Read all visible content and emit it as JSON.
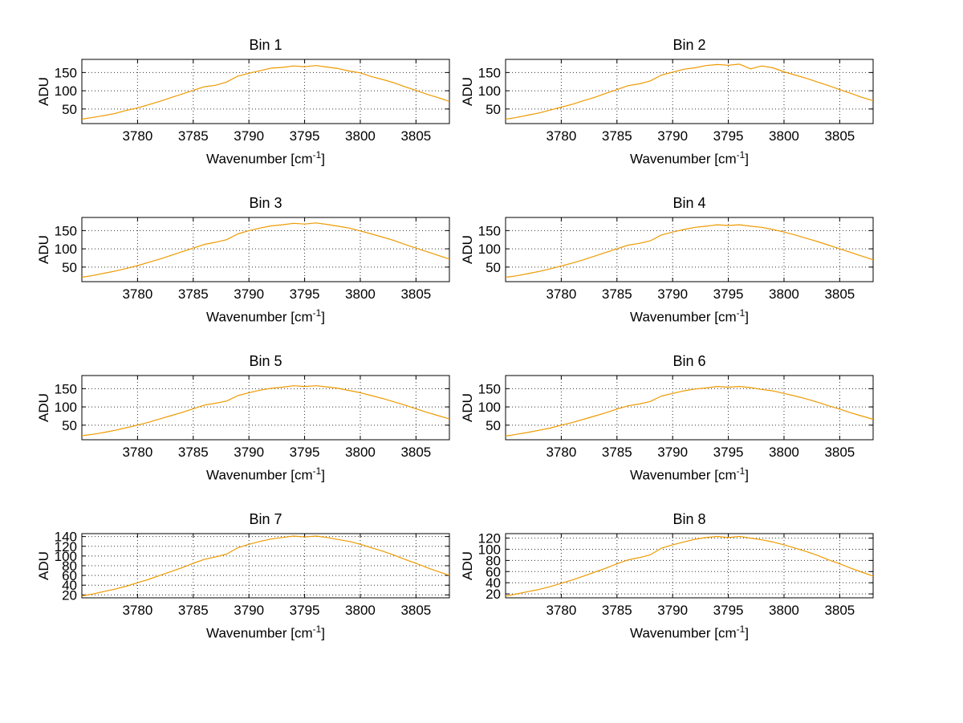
{
  "figure": {
    "background": "#ffffff",
    "axis_color": "#000000",
    "grid_color": "#333333",
    "line_color": "#EE9A00"
  },
  "labels": {
    "ylabel": "ADU",
    "xlabel_prefix": "Wavenumber [cm",
    "xlabel_sup": "-1",
    "xlabel_suffix": "]"
  },
  "chart_data": {
    "type": "line",
    "layout": "4 rows x 2 columns subplots",
    "xlabel": "Wavenumber [cm^-1]",
    "ylabel": "ADU",
    "grid": true,
    "legend": null,
    "line_color": "#EE9A00",
    "xlim": [
      3775,
      3808
    ],
    "xticks": [
      3780,
      3785,
      3790,
      3795,
      3800,
      3805
    ],
    "x": [
      3775,
      3776,
      3777,
      3778,
      3779,
      3780,
      3781,
      3782,
      3783,
      3784,
      3785,
      3786,
      3787,
      3788,
      3789,
      3790,
      3791,
      3792,
      3793,
      3794,
      3795,
      3796,
      3797,
      3798,
      3799,
      3800,
      3801,
      3802,
      3803,
      3804,
      3805,
      3806,
      3807,
      3808
    ],
    "subplots": [
      {
        "title": "Bin 1",
        "ylim": [
          10,
          186
        ],
        "yticks": [
          50,
          100,
          150
        ],
        "values": [
          22,
          27,
          32,
          38,
          46,
          53,
          62,
          71,
          81,
          91,
          101,
          111,
          115,
          124,
          140,
          148,
          155,
          162,
          164,
          168,
          166,
          169,
          165,
          161,
          154,
          149,
          139,
          131,
          122,
          111,
          101,
          90,
          81,
          71
        ]
      },
      {
        "title": "Bin 2",
        "ylim": [
          10,
          186
        ],
        "yticks": [
          50,
          100,
          150
        ],
        "values": [
          22,
          27,
          33,
          39,
          47,
          55,
          63,
          73,
          82,
          93,
          103,
          114,
          119,
          127,
          143,
          151,
          159,
          163,
          169,
          172,
          170,
          173,
          160,
          168,
          163,
          152,
          143,
          134,
          124,
          114,
          103,
          93,
          82,
          73
        ]
      },
      {
        "title": "Bin 3",
        "ylim": [
          10,
          186
        ],
        "yticks": [
          50,
          100,
          150
        ],
        "values": [
          22,
          27,
          33,
          39,
          46,
          54,
          63,
          72,
          82,
          92,
          102,
          112,
          118,
          125,
          141,
          150,
          157,
          163,
          166,
          170,
          168,
          171,
          167,
          162,
          157,
          149,
          141,
          132,
          123,
          112,
          102,
          92,
          82,
          72
        ]
      },
      {
        "title": "Bin 4",
        "ylim": [
          10,
          186
        ],
        "yticks": [
          50,
          100,
          150
        ],
        "values": [
          22,
          26,
          32,
          38,
          45,
          53,
          61,
          70,
          80,
          90,
          100,
          110,
          115,
          122,
          138,
          146,
          153,
          159,
          162,
          166,
          164,
          166,
          162,
          159,
          153,
          146,
          138,
          129,
          120,
          110,
          100,
          90,
          80,
          70
        ]
      },
      {
        "title": "Bin 5",
        "ylim": [
          10,
          186
        ],
        "yticks": [
          50,
          100,
          150
        ],
        "values": [
          21,
          25,
          30,
          36,
          43,
          50,
          58,
          67,
          76,
          85,
          95,
          105,
          110,
          116,
          131,
          139,
          146,
          151,
          154,
          158,
          156,
          158,
          155,
          151,
          145,
          139,
          131,
          123,
          114,
          105,
          95,
          85,
          76,
          67
        ]
      },
      {
        "title": "Bin 6",
        "ylim": [
          10,
          186
        ],
        "yticks": [
          50,
          100,
          150
        ],
        "values": [
          20,
          25,
          30,
          36,
          42,
          50,
          57,
          66,
          75,
          84,
          94,
          103,
          108,
          115,
          130,
          137,
          144,
          149,
          152,
          156,
          154,
          156,
          153,
          148,
          144,
          137,
          130,
          122,
          113,
          103,
          94,
          84,
          75,
          66
        ]
      },
      {
        "title": "Bin 7",
        "ylim": [
          14,
          146
        ],
        "yticks": [
          20,
          40,
          60,
          80,
          100,
          120,
          140
        ],
        "values": [
          18,
          22,
          27,
          32,
          38,
          45,
          52,
          60,
          68,
          76,
          85,
          93,
          98,
          104,
          117,
          124,
          130,
          135,
          138,
          141,
          139,
          141,
          138,
          134,
          130,
          124,
          117,
          110,
          102,
          93,
          85,
          76,
          68,
          60
        ]
      },
      {
        "title": "Bin 8",
        "ylim": [
          13,
          128
        ],
        "yticks": [
          20,
          40,
          60,
          80,
          100,
          120
        ],
        "values": [
          16,
          20,
          24,
          28,
          33,
          39,
          45,
          52,
          59,
          66,
          74,
          81,
          85,
          90,
          102,
          108,
          113,
          118,
          121,
          123,
          121,
          123,
          120,
          117,
          113,
          108,
          102,
          96,
          89,
          81,
          74,
          66,
          59,
          52
        ]
      }
    ]
  }
}
